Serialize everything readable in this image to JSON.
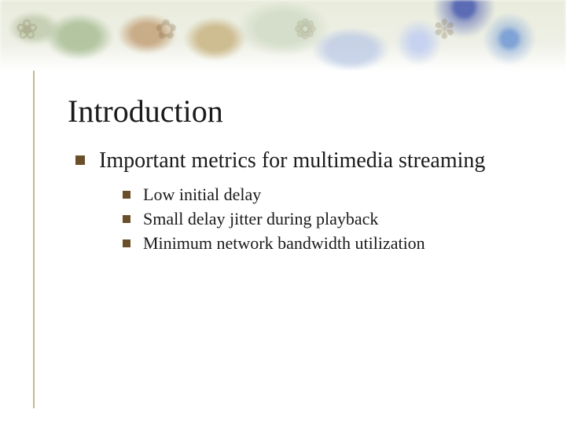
{
  "slide": {
    "title": "Introduction",
    "level1": {
      "bullet_color": "#6b4f2a",
      "text": "Important metrics for multimedia streaming"
    },
    "level2": [
      {
        "text": "Low initial delay"
      },
      {
        "text": "Small delay jitter during playback"
      },
      {
        "text": "Minimum network bandwidth utilization"
      }
    ],
    "style": {
      "title_fontsize": 40,
      "l1_fontsize": 28,
      "l2_fontsize": 22,
      "bullet_color": "#6b4f2a",
      "accent_rule_color": "#c6b98f",
      "background_color": "#ffffff",
      "banner_palette": [
        "#e9ecdc",
        "#c6d2ef",
        "#7fa3d6",
        "#5b6bb4",
        "#b5c39a",
        "#c4a574"
      ]
    }
  }
}
